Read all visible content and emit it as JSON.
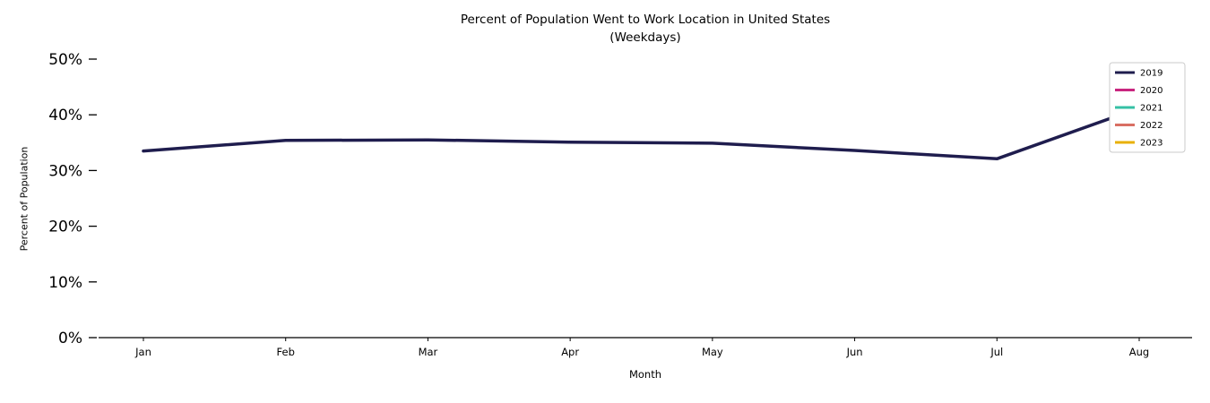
{
  "chart_data": {
    "type": "line",
    "title": "Percent of Population Went to Work Location in United States",
    "subtitle": "(Weekdays)",
    "xlabel": "Month",
    "ylabel": "Percent of Population",
    "categories": [
      "Jan",
      "Feb",
      "Mar",
      "Apr",
      "May",
      "Jun",
      "Jul",
      "Aug"
    ],
    "y_ticks": [
      "0%",
      "10%",
      "20%",
      "30%",
      "40%",
      "50%"
    ],
    "ylim": [
      0,
      50
    ],
    "grid": false,
    "legend_position": "upper right",
    "series": [
      {
        "name": "2019",
        "color": "#1f1d4e",
        "values": [
          33.5,
          35.4,
          35.5,
          35.1,
          34.9,
          33.6,
          32.1,
          41.2
        ]
      },
      {
        "name": "2020",
        "color": "#c9267f",
        "values": []
      },
      {
        "name": "2021",
        "color": "#35c0a5",
        "values": []
      },
      {
        "name": "2022",
        "color": "#d96f63",
        "values": []
      },
      {
        "name": "2023",
        "color": "#e8b004",
        "values": []
      }
    ]
  }
}
